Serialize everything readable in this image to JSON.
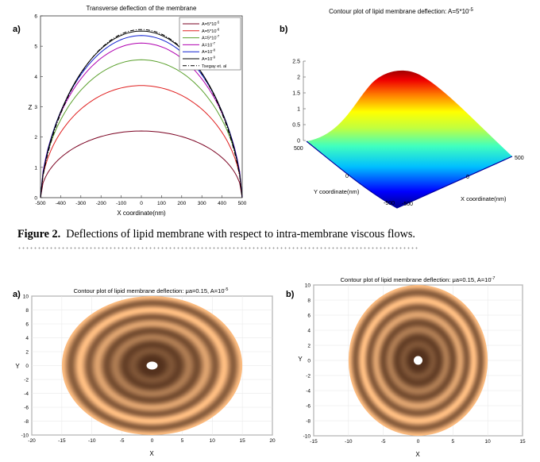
{
  "figure2": {
    "label": "Figure 2.",
    "text": "Deflections of lipid membrane with respect to intra-membrane viscous flows."
  },
  "chart_data": [
    {
      "panel": "a)",
      "type": "line",
      "title": "Transverse deflection of the membrane",
      "xlabel": "X coordinate(nm)",
      "ylabel": "Z",
      "xlim": [
        -500,
        500
      ],
      "ylim": [
        0,
        6
      ],
      "xticks": [
        "-500",
        "-400",
        "-300",
        "-200",
        "-100",
        "0",
        "100",
        "200",
        "300",
        "400",
        "500"
      ],
      "yticks": [
        "0",
        "1",
        "2",
        "3",
        "4",
        "5",
        "6"
      ],
      "legend_position": "top-right",
      "series": [
        {
          "name": "A=5*10^-5",
          "label": "A=5*10",
          "exp": "-5",
          "color": "#7a0020",
          "dash": "",
          "peak": 2.2
        },
        {
          "name": "A=5*10^-6",
          "label": "A=5*10",
          "exp": "-6",
          "color": "#e02020",
          "dash": "",
          "peak": 3.7
        },
        {
          "name": "A=5*10^-7",
          "label": "A=5*10",
          "exp": "-7",
          "color": "#5aa02c",
          "dash": "",
          "peak": 4.55
        },
        {
          "name": "A=10^-7",
          "label": "A=10",
          "exp": "-7",
          "color": "#b000b0",
          "dash": "",
          "peak": 5.1
        },
        {
          "name": "A=10^-8",
          "label": "A=10",
          "exp": "-8",
          "color": "#1020d0",
          "dash": "",
          "peak": 5.35
        },
        {
          "name": "A=10^-9",
          "label": "A=10",
          "exp": "-9",
          "color": "#000000",
          "dash": "",
          "peak": 5.5
        },
        {
          "name": "Tsegay et. al",
          "label": "Tsegay et. al",
          "exp": "",
          "color": "#000000",
          "dash": "5,2,1,2",
          "peak": 5.55
        }
      ]
    },
    {
      "panel": "b)",
      "type": "surface",
      "title": "Contour plot of lipid membrane deflection: A=5*10",
      "title_exp": "-5",
      "xlabel": "X coordinate(nm)",
      "ylabel": "Y coordinate(nm)",
      "zlim": [
        0,
        2.5
      ],
      "zticks": [
        "0",
        "0.5",
        "1",
        "1.5",
        "2",
        "2.5"
      ],
      "xticks": [
        "-500",
        "0",
        "500"
      ],
      "yticks": [
        "500",
        "0",
        "-500"
      ],
      "peak": 2.2
    },
    {
      "panel": "a)",
      "type": "heatmap",
      "title_prefix": "Contour plot of lipid membrane deflection:",
      "mu": "μa=0.15,",
      "A": "A=10",
      "A_exp": "-5",
      "xlabel": "X",
      "ylabel": "Y",
      "xlim": [
        -20,
        20
      ],
      "ylim": [
        -10,
        10
      ],
      "xticks": [
        "-20",
        "-15",
        "-10",
        "-5",
        "0",
        "5",
        "10",
        "15",
        "20"
      ],
      "yticks": [
        "10",
        "8",
        "6",
        "4",
        "2",
        "0",
        "-2",
        "-4",
        "-6",
        "-8",
        "-10"
      ],
      "domain_radius_x": 15,
      "domain_radius_y": 10,
      "rings": 5
    },
    {
      "panel": "b)",
      "type": "heatmap",
      "title_prefix": "Contour plot of lipid membrane deflection:",
      "mu": "μa=0.15,",
      "A": "A=10",
      "A_exp": "-7",
      "xlabel": "X",
      "ylabel": "Y",
      "xlim": [
        -15,
        15
      ],
      "ylim": [
        -10,
        10
      ],
      "xticks": [
        "-15",
        "-10",
        "-5",
        "0",
        "5",
        "10",
        "15"
      ],
      "yticks": [
        "10",
        "8",
        "6",
        "4",
        "2",
        "0",
        "-2",
        "-4",
        "-6",
        "-8",
        "-10"
      ],
      "domain_radius_x": 10,
      "domain_radius_y": 10,
      "rings": 5
    }
  ]
}
